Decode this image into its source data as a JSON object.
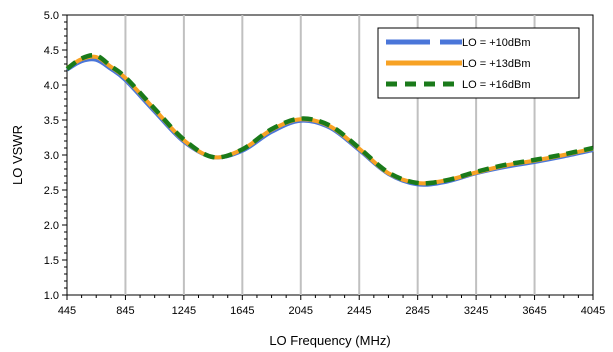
{
  "chart_data": {
    "type": "line",
    "title": "",
    "xlabel": "LO Frequency (MHz)",
    "ylabel": "LO VSWR",
    "xlim": [
      445,
      4045
    ],
    "ylim": [
      1.0,
      5.0
    ],
    "x_ticks": [
      445,
      845,
      1245,
      1645,
      2045,
      2445,
      2845,
      3245,
      3645,
      4045
    ],
    "y_ticks": [
      "1.0",
      "1.5",
      "2.0",
      "2.5",
      "3.0",
      "3.5",
      "4.0",
      "4.5",
      "5.0"
    ],
    "grid": "vertical",
    "legend_position": "top-right",
    "series": [
      {
        "name": "LO = +10dBm",
        "color": "#4a76d9",
        "style": "solid",
        "x": [
          445,
          545,
          645,
          745,
          845,
          1045,
          1245,
          1445,
          1645,
          1845,
          2045,
          2245,
          2445,
          2645,
          2845,
          3045,
          3245,
          3445,
          3645,
          3845,
          4045
        ],
        "y": [
          4.22,
          4.34,
          4.36,
          4.23,
          4.07,
          3.62,
          3.19,
          2.97,
          3.06,
          3.33,
          3.49,
          3.39,
          3.07,
          2.73,
          2.58,
          2.62,
          2.74,
          2.83,
          2.9,
          2.98,
          3.07
        ]
      },
      {
        "name": "LO = +13dBm",
        "color": "#f7a224",
        "style": "solid",
        "x": [
          445,
          545,
          645,
          745,
          845,
          1045,
          1245,
          1445,
          1645,
          1845,
          2045,
          2245,
          2445,
          2645,
          2845,
          3045,
          3245,
          3445,
          3645,
          3845,
          4045
        ],
        "y": [
          4.24,
          4.37,
          4.4,
          4.26,
          4.1,
          3.65,
          3.21,
          2.97,
          3.08,
          3.36,
          3.51,
          3.41,
          3.09,
          2.74,
          2.6,
          2.64,
          2.75,
          2.85,
          2.92,
          3.0,
          3.09
        ]
      },
      {
        "name": "LO = +16dBm",
        "color": "#1a7a1a",
        "style": "dashed",
        "x": [
          445,
          545,
          645,
          745,
          845,
          1045,
          1245,
          1445,
          1645,
          1845,
          2045,
          2245,
          2445,
          2645,
          2845,
          3045,
          3245,
          3445,
          3645,
          3845,
          4045
        ],
        "y": [
          4.23,
          4.38,
          4.42,
          4.27,
          4.11,
          3.66,
          3.22,
          2.97,
          3.08,
          3.37,
          3.52,
          3.42,
          3.1,
          2.75,
          2.6,
          2.64,
          2.76,
          2.86,
          2.93,
          3.01,
          3.1
        ]
      }
    ]
  }
}
